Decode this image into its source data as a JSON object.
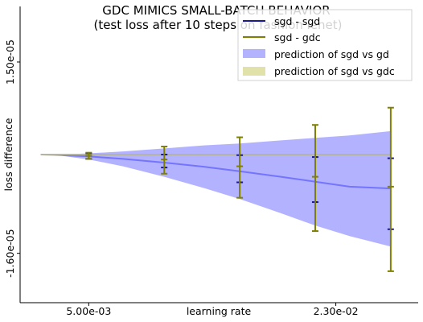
{
  "chart_data": {
    "type": "line",
    "title": "GDC MIMICS SMALL-BATCH BEHAVIOR",
    "subtitle": "(test loss after 10 steps on fashion lenet)",
    "xlabel": "learning rate",
    "ylabel": "loss difference",
    "xlim": [
      0.0,
      0.029
    ],
    "ylim": [
      -2.4e-05,
      2.4e-05
    ],
    "x_ticks": [
      0.005,
      0.023
    ],
    "x_tick_labels": [
      "5.00e-03",
      "2.30e-02"
    ],
    "y_ticks": [
      1.5e-05,
      -1.6e-05
    ],
    "y_tick_labels": [
      "1.50e-05",
      "-1.60e-05"
    ],
    "legend_position": "top-right",
    "x_measured": [
      0.005,
      0.0105,
      0.016,
      0.0215,
      0.027
    ],
    "series": [
      {
        "name": "sgd - sgd",
        "kind": "errorbar",
        "color": "#1a1a8c",
        "lower": [
          -7e-07,
          -2.1e-06,
          -4.5e-06,
          -7.7e-06,
          -1.21e-05
        ],
        "upper": [
          2e-07,
          0.0,
          -1e-07,
          -4e-07,
          -6e-07
        ]
      },
      {
        "name": "sgd - gdc",
        "kind": "errorbar",
        "color": "#808000",
        "center": [
          -2e-07,
          -8e-07,
          -1.9e-06,
          -3.6e-06,
          -5.2e-06
        ],
        "lower": [
          -7e-07,
          -3.1e-06,
          -7e-06,
          -1.24e-05,
          -1.89e-05
        ],
        "upper": [
          3e-07,
          1.3e-06,
          2.8e-06,
          4.8e-06,
          7.6e-06
        ]
      },
      {
        "name": "prediction of sgd vs gd",
        "kind": "band",
        "color": "#0000ff",
        "x": [
          0.0015,
          0.003,
          0.005,
          0.0075,
          0.0105,
          0.0135,
          0.016,
          0.019,
          0.0215,
          0.024,
          0.027
        ],
        "center": [
          0.0,
          -1e-07,
          -3e-07,
          -7e-07,
          -1.3e-06,
          -2e-06,
          -2.7e-06,
          -3.6e-06,
          -4.4e-06,
          -5.2e-06,
          -5.5e-06
        ],
        "lower": [
          0.0,
          -2e-07,
          -8e-07,
          -1.9e-06,
          -3.6e-06,
          -5.5e-06,
          -7.2e-06,
          -9.5e-06,
          -1.15e-05,
          -1.32e-05,
          -1.49e-05
        ],
        "upper": [
          0.0,
          0.0,
          2e-07,
          5e-07,
          1e-06,
          1.5e-06,
          1.8e-06,
          2.3e-06,
          2.7e-06,
          3.1e-06,
          3.8e-06
        ]
      },
      {
        "name": "prediction of sgd vs gdc",
        "kind": "band",
        "color": "#c8c864",
        "x": [
          0.0015,
          0.027
        ],
        "center": [
          0.0,
          0.0
        ],
        "lower": [
          0.0,
          0.0
        ],
        "upper": [
          0.0,
          0.0
        ]
      }
    ]
  }
}
